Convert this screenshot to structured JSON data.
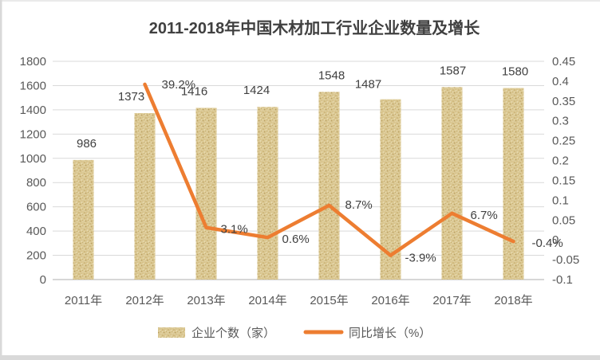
{
  "frame": {
    "edge_color": "#D9D9D9",
    "background": "#FFFFFF"
  },
  "chart_data": {
    "type": "bar",
    "subtype": "bar+line combo, dual axis",
    "title": "2011-2018年中国木材加工行业企业数量及增长",
    "categories": [
      "2011年",
      "2012年",
      "2013年",
      "2014年",
      "2015年",
      "2016年",
      "2017年",
      "2018年"
    ],
    "series": [
      {
        "name": "企业个数（家）",
        "type": "bar",
        "axis": "left",
        "color": "#DBC893",
        "values": [
          986,
          1373,
          1416,
          1424,
          1548,
          1487,
          1587,
          1580
        ],
        "labels": [
          "986",
          "1373",
          "1416",
          "1424",
          "1548",
          "1487",
          "1587",
          "1580"
        ],
        "label_offsets": [
          [
            4,
            0
          ],
          [
            -17,
            0
          ],
          [
            -15,
            0
          ],
          [
            -14,
            0
          ],
          [
            3,
            0
          ],
          [
            -28,
            2
          ],
          [
            1,
            0
          ],
          [
            2,
            0
          ]
        ]
      },
      {
        "name": "同比增长（%）",
        "type": "line",
        "axis": "right",
        "color": "#ED7D31",
        "x_start_index": 1,
        "values": [
          0.392,
          0.031,
          0.006,
          0.087,
          -0.039,
          0.067,
          -0.004
        ],
        "labels": [
          "39.2%",
          "3.1%",
          "0.6%",
          "8.7%",
          "-3.9%",
          "6.7%",
          "-0.4%"
        ],
        "label_offsets": [
          [
            21,
            5
          ],
          [
            18,
            7
          ],
          [
            18,
            7
          ],
          [
            20,
            4
          ],
          [
            18,
            8
          ],
          [
            23,
            7
          ],
          [
            23,
            7
          ]
        ]
      }
    ],
    "left_axis": {
      "min": 0,
      "max": 1800,
      "ticks": [
        "1800",
        "1600",
        "1400",
        "1200",
        "1000",
        "800",
        "600",
        "400",
        "200",
        "0"
      ]
    },
    "right_axis": {
      "min": -0.1,
      "max": 0.45,
      "ticks": [
        "0.45",
        "0.4",
        "0.35",
        "0.3",
        "0.25",
        "0.2",
        "0.15",
        "0.1",
        "0.05",
        "0",
        "-0.05",
        "-0.1"
      ]
    },
    "legend": [
      "企业个数（家）",
      "同比增长（%）"
    ],
    "legend_position": "bottom",
    "grid": true,
    "grid_color": "#D9D9D9"
  }
}
